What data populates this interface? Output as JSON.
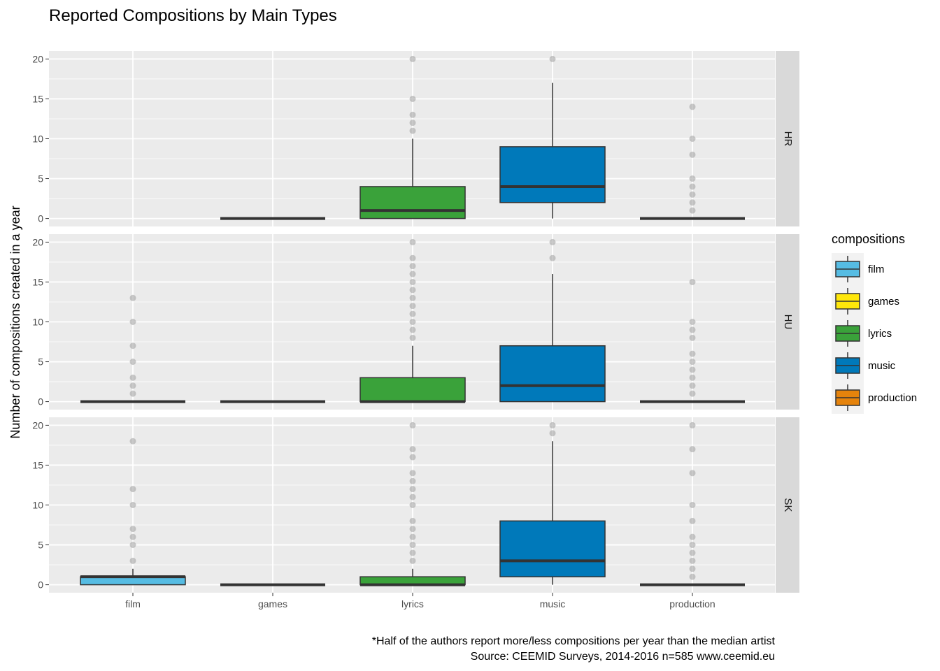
{
  "chart_data": {
    "type": "boxplot",
    "title": "Reported Compositions by Main Types",
    "ylabel": "Number of compositions created in a year",
    "xlabel": "",
    "categories": [
      "film",
      "games",
      "lyrics",
      "music",
      "production"
    ],
    "yticks": [
      0,
      5,
      10,
      15,
      20
    ],
    "ylim": [
      -1,
      21
    ],
    "grid": true,
    "legend": {
      "title": "compositions",
      "position": "right",
      "entries": [
        {
          "label": "film",
          "color": "#56BCE3"
        },
        {
          "label": "games",
          "color": "#FFE70A"
        },
        {
          "label": "lyrics",
          "color": "#3AA23A"
        },
        {
          "label": "music",
          "color": "#0079BA"
        },
        {
          "label": "production",
          "color": "#E5830C"
        }
      ]
    },
    "facets": [
      {
        "label": "HR",
        "boxes": [
          {
            "category": "film",
            "present": false
          },
          {
            "category": "games",
            "q1": 0,
            "median": 0,
            "q3": 0,
            "whisker_low": 0,
            "whisker_high": 0,
            "outliers": []
          },
          {
            "category": "lyrics",
            "q1": 0,
            "median": 1,
            "q3": 4,
            "whisker_low": 0,
            "whisker_high": 10,
            "outliers": [
              11,
              12,
              13,
              15,
              20
            ]
          },
          {
            "category": "music",
            "q1": 2,
            "median": 4,
            "q3": 9,
            "whisker_low": 0,
            "whisker_high": 17,
            "outliers": [
              20
            ]
          },
          {
            "category": "production",
            "q1": 0,
            "median": 0,
            "q3": 0,
            "whisker_low": 0,
            "whisker_high": 0,
            "outliers": [
              1,
              2,
              3,
              4,
              5,
              8,
              10,
              14
            ]
          }
        ]
      },
      {
        "label": "HU",
        "boxes": [
          {
            "category": "film",
            "q1": 0,
            "median": 0,
            "q3": 0,
            "whisker_low": 0,
            "whisker_high": 0,
            "outliers": [
              1,
              2,
              3,
              5,
              7,
              10,
              13
            ]
          },
          {
            "category": "games",
            "q1": 0,
            "median": 0,
            "q3": 0,
            "whisker_low": 0,
            "whisker_high": 0,
            "outliers": []
          },
          {
            "category": "lyrics",
            "q1": 0,
            "median": 0,
            "q3": 3,
            "whisker_low": 0,
            "whisker_high": 7,
            "outliers": [
              8,
              9,
              10,
              11,
              12,
              13,
              14,
              15,
              16,
              17,
              18,
              20
            ]
          },
          {
            "category": "music",
            "q1": 0,
            "median": 2,
            "q3": 7,
            "whisker_low": 0,
            "whisker_high": 16,
            "outliers": [
              18,
              20
            ]
          },
          {
            "category": "production",
            "q1": 0,
            "median": 0,
            "q3": 0,
            "whisker_low": 0,
            "whisker_high": 0,
            "outliers": [
              1,
              2,
              3,
              4,
              5,
              6,
              8,
              9,
              10,
              15
            ]
          }
        ]
      },
      {
        "label": "SK",
        "boxes": [
          {
            "category": "film",
            "q1": 0,
            "median": 1,
            "q3": 1,
            "whisker_low": 0,
            "whisker_high": 2,
            "outliers": [
              3,
              5,
              6,
              7,
              10,
              12,
              18
            ]
          },
          {
            "category": "games",
            "q1": 0,
            "median": 0,
            "q3": 0,
            "whisker_low": 0,
            "whisker_high": 0,
            "outliers": []
          },
          {
            "category": "lyrics",
            "q1": 0,
            "median": 0,
            "q3": 1,
            "whisker_low": 0,
            "whisker_high": 2,
            "outliers": [
              3,
              4,
              5,
              6,
              7,
              8,
              10,
              11,
              12,
              13,
              14,
              16,
              17,
              20
            ]
          },
          {
            "category": "music",
            "q1": 1,
            "median": 3,
            "q3": 8,
            "whisker_low": 0,
            "whisker_high": 18,
            "outliers": [
              19,
              20
            ]
          },
          {
            "category": "production",
            "q1": 0,
            "median": 0,
            "q3": 0,
            "whisker_low": 0,
            "whisker_high": 0,
            "outliers": [
              1,
              2,
              3,
              4,
              5,
              6,
              8,
              10,
              14,
              17,
              20
            ]
          }
        ]
      }
    ],
    "caption_lines": [
      "*Half of the authors report more/less compositions per year than the median artist",
      "Source: CEEMID Surveys, 2014-2016 n=585 www.ceemid.eu"
    ]
  }
}
